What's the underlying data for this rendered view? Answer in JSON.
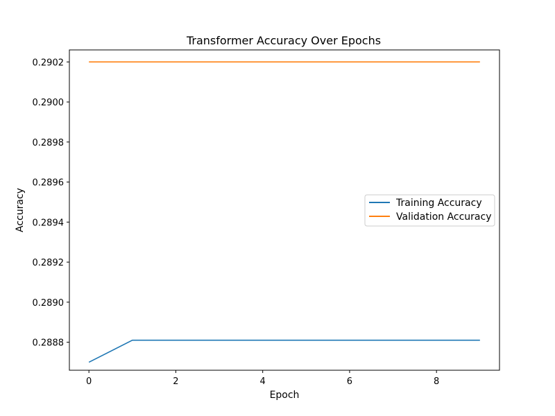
{
  "chart_data": {
    "type": "line",
    "title": "Transformer Accuracy Over Epochs",
    "xlabel": "Epoch",
    "ylabel": "Accuracy",
    "xlim": [
      -0.45,
      9.45
    ],
    "ylim": [
      0.28866,
      0.29026
    ],
    "xticks": [
      0,
      2,
      4,
      6,
      8
    ],
    "yticks": [
      0.2888,
      0.289,
      0.2892,
      0.2894,
      0.2896,
      0.2898,
      0.29,
      0.2902
    ],
    "ytick_decimals": 4,
    "grid": false,
    "legend_position": "center-right",
    "x": [
      0,
      1,
      2,
      3,
      4,
      5,
      6,
      7,
      8,
      9
    ],
    "series": [
      {
        "name": "Training Accuracy",
        "color": "#1f77b4",
        "values": [
          0.2887,
          0.28881,
          0.28881,
          0.28881,
          0.28881,
          0.28881,
          0.28881,
          0.28881,
          0.28881,
          0.28881
        ]
      },
      {
        "name": "Validation Accuracy",
        "color": "#ff7f0e",
        "values": [
          0.2902,
          0.2902,
          0.2902,
          0.2902,
          0.2902,
          0.2902,
          0.2902,
          0.2902,
          0.2902,
          0.2902
        ]
      }
    ]
  }
}
